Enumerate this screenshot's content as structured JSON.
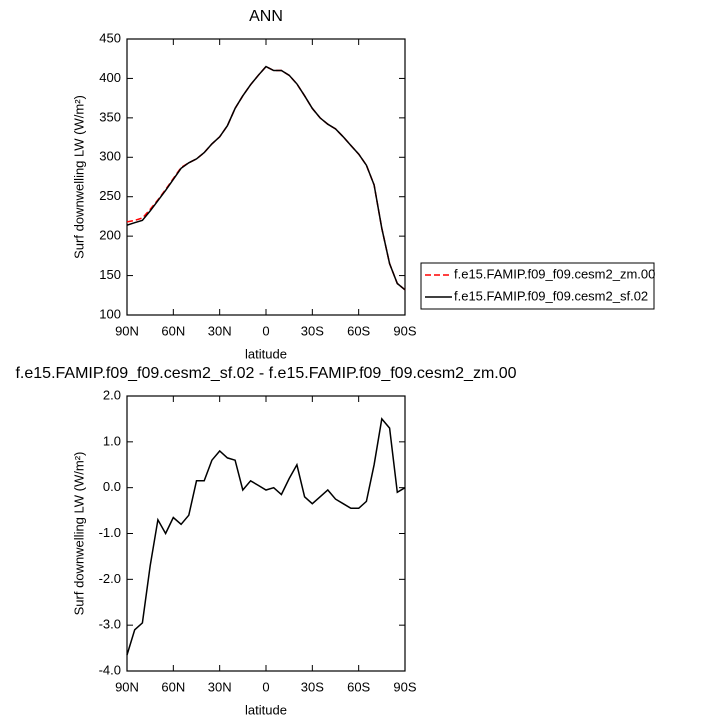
{
  "chart_data": [
    {
      "type": "line",
      "title": "ANN",
      "xlabel": "latitude",
      "ylabel": "Surf downwelling LW (W/m²)",
      "x": [
        90,
        85,
        80,
        75,
        70,
        65,
        60,
        55,
        50,
        45,
        40,
        35,
        30,
        25,
        20,
        15,
        10,
        5,
        0,
        -5,
        -10,
        -15,
        -20,
        -25,
        -30,
        -35,
        -40,
        -45,
        -50,
        -55,
        -60,
        -65,
        -70,
        -75,
        -80,
        -85,
        -90
      ],
      "series": [
        {
          "name": "f.e15.FAMIP.f09_f09.cesm2_zm.00",
          "color": "#ff0000",
          "dash": true,
          "values": [
            218,
            220,
            223,
            234,
            246,
            259,
            273,
            287,
            293,
            298,
            306,
            317,
            326,
            340,
            362,
            378,
            392,
            404,
            415,
            410,
            410,
            404,
            393,
            378,
            362,
            350,
            342,
            336,
            326,
            315,
            304,
            290,
            265,
            210,
            165,
            140,
            132
          ]
        },
        {
          "name": "f.e15.FAMIP.f09_f09.cesm2_sf.02",
          "color": "#000000",
          "dash": false,
          "values": [
            214,
            217,
            220,
            232,
            245,
            258,
            272,
            286,
            293,
            298,
            306,
            317,
            326,
            340,
            362,
            378,
            392,
            404,
            415,
            410,
            410,
            404,
            393,
            378,
            362,
            350,
            342,
            336,
            326,
            315,
            304,
            290,
            265,
            210,
            165,
            140,
            132
          ]
        }
      ],
      "xlim": [
        90,
        -90
      ],
      "xticks": [
        {
          "value": 90,
          "label": "90N"
        },
        {
          "value": 60,
          "label": "60N"
        },
        {
          "value": 30,
          "label": "30N"
        },
        0,
        {
          "value": -30,
          "label": "30S"
        },
        {
          "value": -60,
          "label": "60S"
        },
        {
          "value": -90,
          "label": "90S"
        }
      ],
      "ylim": [
        100,
        450
      ],
      "yticks": [
        100,
        150,
        200,
        250,
        300,
        350,
        400,
        450
      ],
      "legend": "right"
    },
    {
      "type": "line",
      "title": "f.e15.FAMIP.f09_f09.cesm2_sf.02 - f.e15.FAMIP.f09_f09.cesm2_zm.00",
      "xlabel": "latitude",
      "ylabel": "Surf downwelling LW (W/m²)",
      "x": [
        90,
        85,
        80,
        75,
        70,
        65,
        60,
        55,
        50,
        45,
        40,
        35,
        30,
        25,
        20,
        15,
        10,
        5,
        0,
        -5,
        -10,
        -15,
        -20,
        -25,
        -30,
        -35,
        -40,
        -45,
        -50,
        -55,
        -60,
        -65,
        -70,
        -75,
        -80,
        -85,
        -90
      ],
      "color": "#000000",
      "values": [
        -3.65,
        -3.1,
        -2.95,
        -1.7,
        -0.7,
        -1.0,
        -0.65,
        -0.8,
        -0.6,
        0.15,
        0.15,
        0.6,
        0.8,
        0.65,
        0.6,
        -0.05,
        0.15,
        0.05,
        -0.05,
        0.0,
        -0.15,
        0.2,
        0.5,
        -0.2,
        -0.35,
        -0.2,
        -0.05,
        -0.25,
        -0.35,
        -0.45,
        -0.45,
        -0.3,
        0.5,
        1.5,
        1.3,
        -0.1,
        0.0
      ],
      "xlim": [
        90,
        -90
      ],
      "xticks": [
        {
          "value": 90,
          "label": "90N"
        },
        {
          "value": 60,
          "label": "60N"
        },
        {
          "value": 30,
          "label": "30N"
        },
        0,
        {
          "value": -30,
          "label": "30S"
        },
        {
          "value": -60,
          "label": "60S"
        },
        {
          "value": -90,
          "label": "90S"
        }
      ],
      "ylim": [
        -4,
        2
      ],
      "yticks": [
        {
          "value": -4,
          "label": "-4.0"
        },
        {
          "value": -3,
          "label": "-3.0"
        },
        {
          "value": -2,
          "label": "-2.0"
        },
        {
          "value": -1,
          "label": "-1.0"
        },
        {
          "value": 0,
          "label": "0.0"
        },
        {
          "value": 1,
          "label": "1.0"
        },
        {
          "value": 2,
          "label": "2.0"
        }
      ]
    }
  ]
}
